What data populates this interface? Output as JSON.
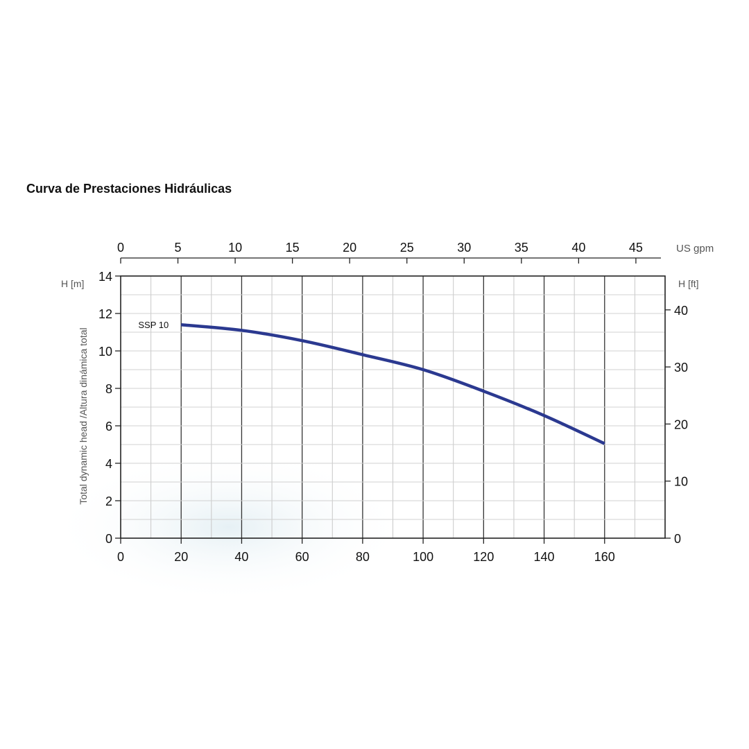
{
  "chart_data": {
    "type": "line",
    "title": "Curva de Prestaciones Hidráulicas",
    "xlabel": "",
    "ylabel": "Total dynamic head /Altura dinámica total",
    "ylabel_unit": "H [m]",
    "xlim": [
      0,
      180
    ],
    "ylim": [
      0,
      14
    ],
    "x_ticks": [
      0,
      20,
      40,
      60,
      80,
      100,
      120,
      140,
      160
    ],
    "y_ticks": [
      0,
      2,
      4,
      6,
      8,
      10,
      12,
      14
    ],
    "top_axis": {
      "label": "US gpm",
      "ticks": [
        0,
        5,
        10,
        15,
        20,
        25,
        30,
        35,
        40,
        45
      ],
      "lim": [
        0,
        47.55
      ]
    },
    "right_axis": {
      "label": "H [ft]",
      "ticks": [
        0,
        10,
        20,
        30,
        40
      ],
      "lim": [
        0,
        45.93
      ]
    },
    "grid": true,
    "series": [
      {
        "name": "SSP 10",
        "color": "#2b3990",
        "x": [
          20,
          40,
          60,
          80,
          100,
          120,
          140,
          160
        ],
        "y": [
          11.4,
          11.1,
          10.55,
          9.8,
          9.0,
          7.85,
          6.55,
          5.05
        ]
      }
    ]
  }
}
